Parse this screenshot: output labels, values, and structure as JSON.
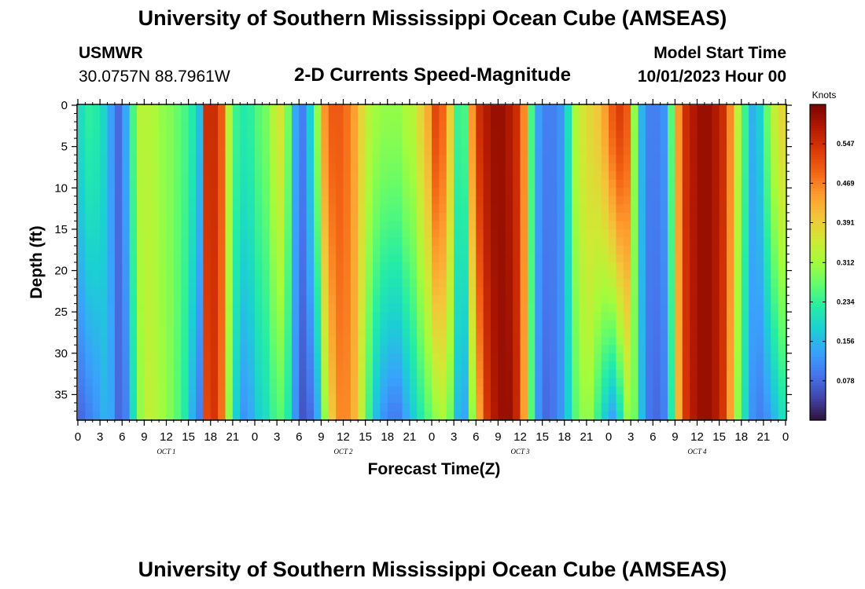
{
  "header": {
    "title": "University of Southern Mississippi Ocean Cube (AMSEAS)",
    "station": "USMWR",
    "coords": "30.0757N  88.7961W",
    "plot_title": "2-D Currents Speed-Magnitude",
    "model_start_label": "Model Start Time",
    "model_start_value": "10/01/2023 Hour 00"
  },
  "footer": {
    "title": "University of Southern Mississippi Ocean Cube (AMSEAS)"
  },
  "chart_data": {
    "type": "heatmap",
    "title": "2-D Currents Speed-Magnitude",
    "xlabel": "Forecast Time(Z)",
    "ylabel": "Depth (ft)",
    "x_hours_range": [
      0,
      96
    ],
    "x_tick_hours": [
      0,
      3,
      6,
      9,
      12,
      15,
      18,
      21,
      24,
      27,
      30,
      33,
      36,
      39,
      42,
      45,
      48,
      51,
      54,
      57,
      60,
      63,
      66,
      69,
      72,
      75,
      78,
      81,
      84,
      87,
      90,
      93,
      96
    ],
    "x_tick_labels": [
      "0",
      "3",
      "6",
      "9",
      "12",
      "15",
      "18",
      "21",
      "0",
      "3",
      "6",
      "9",
      "12",
      "15",
      "18",
      "21",
      "0",
      "3",
      "6",
      "9",
      "12",
      "15",
      "18",
      "21",
      "0",
      "3",
      "6",
      "9",
      "12",
      "15",
      "18",
      "21",
      "0"
    ],
    "day_labels": [
      {
        "hour": 12,
        "label": "OCT 1"
      },
      {
        "hour": 36,
        "label": "OCT 2"
      },
      {
        "hour": 60,
        "label": "OCT 3"
      },
      {
        "hour": 84,
        "label": "OCT 4"
      }
    ],
    "y_range": [
      0,
      38
    ],
    "y_ticks": [
      0,
      5,
      10,
      15,
      20,
      25,
      30,
      35
    ],
    "y_tick_labels": [
      "0",
      "5",
      "10",
      "15",
      "20",
      "25",
      "30",
      "35"
    ],
    "colorbar": {
      "unit": "Knots",
      "range": [
        0,
        0.625
      ],
      "ticks": [
        0.078,
        0.156,
        0.234,
        0.312,
        0.391,
        0.469,
        0.547
      ],
      "tick_labels": [
        "0.078",
        "0.156",
        "0.234",
        "0.312",
        "0.391",
        "0.469",
        "0.547"
      ],
      "colormap": [
        "#30123b",
        "#4145ab",
        "#4675ed",
        "#39a2fc",
        "#1bcfd4",
        "#24eca6",
        "#61fc6c",
        "#a4fc3b",
        "#d1e834",
        "#f3c63a",
        "#fe9b2d",
        "#f36315",
        "#d93806",
        "#b11901",
        "#7a0403"
      ]
    },
    "surface_speed_profile": {
      "hours": [
        0,
        1,
        2,
        3,
        4,
        5,
        6,
        7,
        8,
        9,
        10,
        11,
        12,
        13,
        14,
        15,
        16,
        17,
        18,
        19,
        20,
        21,
        22,
        23,
        24,
        25,
        26,
        27,
        28,
        29,
        30,
        31,
        32,
        33,
        34,
        35,
        36,
        37,
        38,
        39,
        40,
        41,
        42,
        43,
        44,
        45,
        46,
        47,
        48,
        49,
        50,
        51,
        52,
        53,
        54,
        55,
        56,
        57,
        58,
        59,
        60,
        61,
        62,
        63,
        64,
        65,
        66,
        67,
        68,
        69,
        70,
        71,
        72,
        73,
        74,
        75,
        76,
        77,
        78,
        79,
        80,
        81,
        82,
        83,
        84,
        85,
        86,
        87,
        88,
        89,
        90,
        91,
        92,
        93,
        94,
        95,
        96
      ],
      "knots": [
        0.2,
        0.23,
        0.22,
        0.19,
        0.13,
        0.08,
        0.14,
        0.25,
        0.33,
        0.33,
        0.32,
        0.3,
        0.29,
        0.27,
        0.25,
        0.22,
        0.16,
        0.55,
        0.55,
        0.5,
        0.33,
        0.24,
        0.22,
        0.23,
        0.26,
        0.28,
        0.33,
        0.36,
        0.28,
        0.14,
        0.1,
        0.18,
        0.3,
        0.45,
        0.5,
        0.5,
        0.48,
        0.44,
        0.38,
        0.33,
        0.31,
        0.3,
        0.3,
        0.3,
        0.32,
        0.33,
        0.38,
        0.43,
        0.52,
        0.49,
        0.39,
        0.24,
        0.25,
        0.45,
        0.55,
        0.58,
        0.6,
        0.6,
        0.58,
        0.55,
        0.46,
        0.25,
        0.13,
        0.1,
        0.1,
        0.12,
        0.2,
        0.32,
        0.36,
        0.38,
        0.4,
        0.44,
        0.5,
        0.53,
        0.5,
        0.3,
        0.15,
        0.1,
        0.1,
        0.12,
        0.26,
        0.45,
        0.55,
        0.58,
        0.6,
        0.6,
        0.58,
        0.55,
        0.46,
        0.34,
        0.24,
        0.15,
        0.18,
        0.27,
        0.34,
        0.38,
        0.4
      ],
      "bottom_knots": [
        0.08,
        0.1,
        0.12,
        0.15,
        0.14,
        0.08,
        0.1,
        0.2,
        0.3,
        0.34,
        0.33,
        0.31,
        0.29,
        0.26,
        0.22,
        0.15,
        0.1,
        0.52,
        0.54,
        0.48,
        0.3,
        0.18,
        0.12,
        0.14,
        0.18,
        0.2,
        0.24,
        0.26,
        0.22,
        0.12,
        0.06,
        0.08,
        0.14,
        0.3,
        0.4,
        0.46,
        0.46,
        0.42,
        0.34,
        0.24,
        0.16,
        0.12,
        0.1,
        0.1,
        0.14,
        0.18,
        0.22,
        0.26,
        0.3,
        0.32,
        0.28,
        0.16,
        0.14,
        0.3,
        0.44,
        0.54,
        0.58,
        0.6,
        0.6,
        0.56,
        0.44,
        0.26,
        0.12,
        0.08,
        0.09,
        0.12,
        0.18,
        0.26,
        0.3,
        0.3,
        0.24,
        0.18,
        0.14,
        0.2,
        0.3,
        0.28,
        0.16,
        0.09,
        0.08,
        0.1,
        0.22,
        0.42,
        0.54,
        0.58,
        0.6,
        0.6,
        0.58,
        0.54,
        0.44,
        0.3,
        0.2,
        0.12,
        0.1,
        0.12,
        0.16,
        0.2,
        0.24
      ]
    }
  }
}
